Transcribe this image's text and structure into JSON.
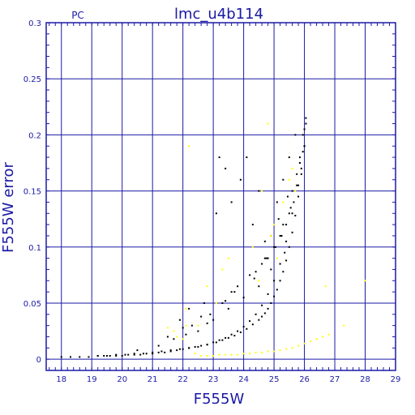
{
  "chart_data": {
    "type": "scatter",
    "title": "lmc_u4b114",
    "subtitle": "PC",
    "xlabel": "F555W",
    "ylabel": "F555W error",
    "xlim": [
      17.5,
      29
    ],
    "ylim": [
      -0.01,
      0.3
    ],
    "xticks": [
      18,
      19,
      20,
      21,
      22,
      23,
      24,
      25,
      26,
      27,
      28,
      29
    ],
    "yticks": [
      0,
      0.05,
      0.1,
      0.15,
      0.2,
      0.25,
      0.3
    ],
    "ytick_labels": [
      "0",
      "0.05",
      "0.1",
      "0.15",
      "0.2",
      "0.25",
      "0.3"
    ],
    "grid": true,
    "colors": {
      "axis": "#1a1aa6",
      "grid": "#1a1aa6",
      "series_black": "#000000",
      "series_yellow": "#ffff00"
    },
    "series": [
      {
        "color": "#000000",
        "x": [
          18.0,
          18.3,
          18.6,
          18.9,
          19.2,
          19.5,
          19.8,
          20.1,
          20.4,
          20.7,
          21.0,
          21.3,
          21.6,
          21.9,
          22.2,
          22.5,
          22.8,
          23.1,
          23.3,
          23.5,
          23.7,
          23.9,
          24.1,
          24.3,
          24.5,
          24.6,
          24.7,
          24.8,
          24.9,
          25.0,
          25.1,
          25.2,
          25.3,
          25.4,
          25.5,
          25.6,
          25.7,
          25.8,
          25.9,
          26.0,
          26.0,
          26.05,
          26.05,
          25.95,
          25.85,
          25.75,
          25.6,
          25.4,
          25.2,
          25.0,
          24.8,
          24.6,
          24.4,
          24.2,
          24.0,
          23.8,
          23.6,
          23.4,
          23.2,
          23.0,
          22.8,
          22.6,
          22.4,
          22.2,
          22.0,
          21.8,
          21.6,
          21.4,
          21.2,
          21.0,
          20.8,
          20.6,
          20.4,
          20.2,
          20.0,
          19.8,
          19.6,
          19.4,
          19.2,
          22.3,
          22.9,
          23.1,
          23.4,
          23.6,
          23.9,
          24.1,
          24.3,
          24.5,
          24.7,
          24.9,
          25.1,
          25.3,
          25.5,
          23.2,
          22.7,
          21.9,
          22.2,
          23.7,
          24.2,
          24.6,
          25.0,
          25.4,
          25.7,
          21.5,
          22.0,
          22.6,
          23.3,
          23.8,
          24.4,
          24.8,
          25.2,
          25.6,
          25.9,
          26.0,
          25.8,
          25.5,
          25.3,
          24.0,
          23.5,
          24.5,
          24.9,
          25.35,
          25.65,
          22.5,
          23.0,
          23.4,
          24.7,
          25.15,
          25.45,
          25.75,
          25.95,
          20.5,
          21.2,
          21.7,
          22.1,
          22.8,
          23.6,
          24.35,
          24.75,
          25.05,
          25.25,
          25.55,
          25.85
        ],
        "y": [
          0.002,
          0.002,
          0.002,
          0.002,
          0.003,
          0.003,
          0.004,
          0.004,
          0.005,
          0.005,
          0.006,
          0.007,
          0.008,
          0.009,
          0.01,
          0.011,
          0.013,
          0.015,
          0.017,
          0.019,
          0.021,
          0.024,
          0.027,
          0.031,
          0.035,
          0.038,
          0.041,
          0.045,
          0.05,
          0.056,
          0.062,
          0.07,
          0.078,
          0.088,
          0.1,
          0.113,
          0.128,
          0.145,
          0.165,
          0.19,
          0.205,
          0.21,
          0.215,
          0.2,
          0.175,
          0.155,
          0.13,
          0.105,
          0.085,
          0.07,
          0.058,
          0.048,
          0.04,
          0.034,
          0.029,
          0.025,
          0.022,
          0.019,
          0.017,
          0.015,
          0.013,
          0.012,
          0.011,
          0.01,
          0.009,
          0.008,
          0.007,
          0.006,
          0.006,
          0.005,
          0.005,
          0.004,
          0.004,
          0.004,
          0.003,
          0.003,
          0.003,
          0.003,
          0.003,
          0.03,
          0.04,
          0.13,
          0.17,
          0.14,
          0.16,
          0.18,
          0.12,
          0.15,
          0.09,
          0.11,
          0.14,
          0.16,
          0.18,
          0.18,
          0.05,
          0.035,
          0.045,
          0.06,
          0.075,
          0.085,
          0.1,
          0.12,
          0.2,
          0.02,
          0.028,
          0.038,
          0.05,
          0.065,
          0.078,
          0.09,
          0.11,
          0.15,
          0.17,
          0.19,
          0.155,
          0.13,
          0.12,
          0.055,
          0.045,
          0.065,
          0.08,
          0.095,
          0.14,
          0.025,
          0.035,
          0.052,
          0.105,
          0.125,
          0.145,
          0.165,
          0.185,
          0.008,
          0.012,
          0.018,
          0.022,
          0.032,
          0.06,
          0.072,
          0.09,
          0.1,
          0.11,
          0.135,
          0.18
        ]
      },
      {
        "color": "#ffff00",
        "x": [
          21.5,
          21.8,
          22.0,
          22.1,
          22.2,
          22.4,
          22.6,
          22.8,
          23.0,
          23.2,
          23.4,
          23.6,
          23.8,
          24.0,
          24.2,
          24.4,
          24.6,
          24.8,
          25.0,
          25.2,
          25.4,
          25.6,
          25.8,
          26.0,
          26.2,
          26.4,
          26.6,
          26.8,
          27.3,
          28.0,
          24.8,
          24.6,
          25.0,
          25.3,
          25.5,
          25.7,
          23.3,
          22.8,
          22.1,
          21.7,
          23.5,
          24.3,
          24.9,
          25.6,
          26.7,
          22.5,
          23.1,
          24.5,
          25.1
        ],
        "y": [
          0.028,
          0.02,
          0.018,
          0.03,
          0.19,
          0.005,
          0.003,
          0.003,
          0.003,
          0.004,
          0.004,
          0.004,
          0.004,
          0.005,
          0.005,
          0.006,
          0.006,
          0.007,
          0.007,
          0.008,
          0.009,
          0.01,
          0.012,
          0.014,
          0.016,
          0.018,
          0.02,
          0.022,
          0.03,
          0.07,
          0.21,
          0.15,
          0.12,
          0.14,
          0.16,
          0.15,
          0.08,
          0.065,
          0.045,
          0.025,
          0.09,
          0.1,
          0.11,
          0.17,
          0.065,
          0.03,
          0.05,
          0.07,
          0.09
        ]
      }
    ]
  }
}
